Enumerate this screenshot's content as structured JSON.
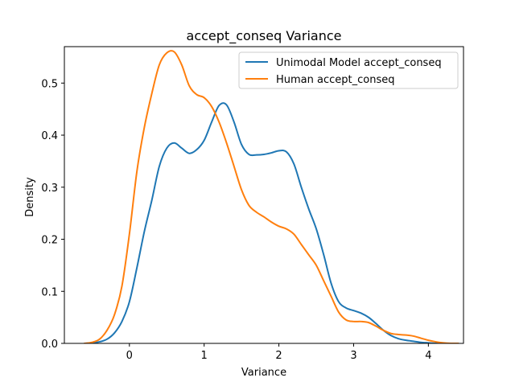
{
  "chart_data": {
    "type": "line",
    "title": "accept_conseq Variance",
    "xlabel": "Variance",
    "ylabel": "Density",
    "xlim": [
      -0.87,
      4.47
    ],
    "ylim": [
      0,
      0.57
    ],
    "xticks": [
      0,
      1,
      2,
      3,
      4
    ],
    "yticks": [
      0.0,
      0.1,
      0.2,
      0.3,
      0.4,
      0.5
    ],
    "ytick_labels": [
      "0.0",
      "0.1",
      "0.2",
      "0.3",
      "0.4",
      "0.5"
    ],
    "grid": false,
    "legend_position": "top-right",
    "series": [
      {
        "name": "Unimodal Model accept_conseq",
        "color": "#1f77b4",
        "x": [
          -0.6,
          -0.5,
          -0.4,
          -0.3,
          -0.2,
          -0.1,
          0.0,
          0.1,
          0.2,
          0.3,
          0.4,
          0.5,
          0.6,
          0.7,
          0.8,
          0.9,
          1.0,
          1.1,
          1.2,
          1.3,
          1.4,
          1.5,
          1.6,
          1.7,
          1.8,
          1.9,
          2.0,
          2.1,
          2.2,
          2.3,
          2.4,
          2.5,
          2.6,
          2.7,
          2.8,
          2.9,
          3.0,
          3.1,
          3.2,
          3.3,
          3.4,
          3.5,
          3.6,
          3.7,
          3.8,
          3.9,
          4.0,
          4.1,
          4.2,
          4.3,
          4.4
        ],
        "y": [
          0.0,
          0.001,
          0.003,
          0.008,
          0.02,
          0.042,
          0.08,
          0.145,
          0.215,
          0.275,
          0.34,
          0.375,
          0.385,
          0.375,
          0.365,
          0.372,
          0.39,
          0.425,
          0.457,
          0.458,
          0.425,
          0.382,
          0.363,
          0.362,
          0.363,
          0.366,
          0.37,
          0.368,
          0.345,
          0.3,
          0.258,
          0.22,
          0.17,
          0.115,
          0.08,
          0.068,
          0.063,
          0.058,
          0.05,
          0.038,
          0.025,
          0.015,
          0.009,
          0.006,
          0.004,
          0.002,
          0.001,
          0.0,
          0.0,
          0.0,
          0.0
        ]
      },
      {
        "name": "Human accept_conseq",
        "color": "#ff7f0e",
        "x": [
          -0.6,
          -0.5,
          -0.4,
          -0.3,
          -0.2,
          -0.1,
          0.0,
          0.1,
          0.2,
          0.3,
          0.4,
          0.5,
          0.6,
          0.7,
          0.8,
          0.9,
          1.0,
          1.1,
          1.2,
          1.3,
          1.4,
          1.5,
          1.6,
          1.7,
          1.8,
          1.9,
          2.0,
          2.1,
          2.2,
          2.3,
          2.4,
          2.5,
          2.6,
          2.7,
          2.8,
          2.9,
          3.0,
          3.1,
          3.2,
          3.3,
          3.4,
          3.5,
          3.6,
          3.7,
          3.8,
          3.9,
          4.0,
          4.1,
          4.2,
          4.3,
          4.4
        ],
        "y": [
          0.0,
          0.002,
          0.008,
          0.025,
          0.055,
          0.11,
          0.21,
          0.33,
          0.415,
          0.48,
          0.535,
          0.558,
          0.56,
          0.535,
          0.495,
          0.478,
          0.472,
          0.455,
          0.425,
          0.385,
          0.34,
          0.295,
          0.265,
          0.252,
          0.243,
          0.233,
          0.225,
          0.22,
          0.21,
          0.19,
          0.17,
          0.15,
          0.12,
          0.09,
          0.06,
          0.045,
          0.042,
          0.042,
          0.04,
          0.033,
          0.025,
          0.019,
          0.017,
          0.016,
          0.014,
          0.01,
          0.006,
          0.003,
          0.001,
          0.0,
          0.0
        ]
      }
    ]
  }
}
